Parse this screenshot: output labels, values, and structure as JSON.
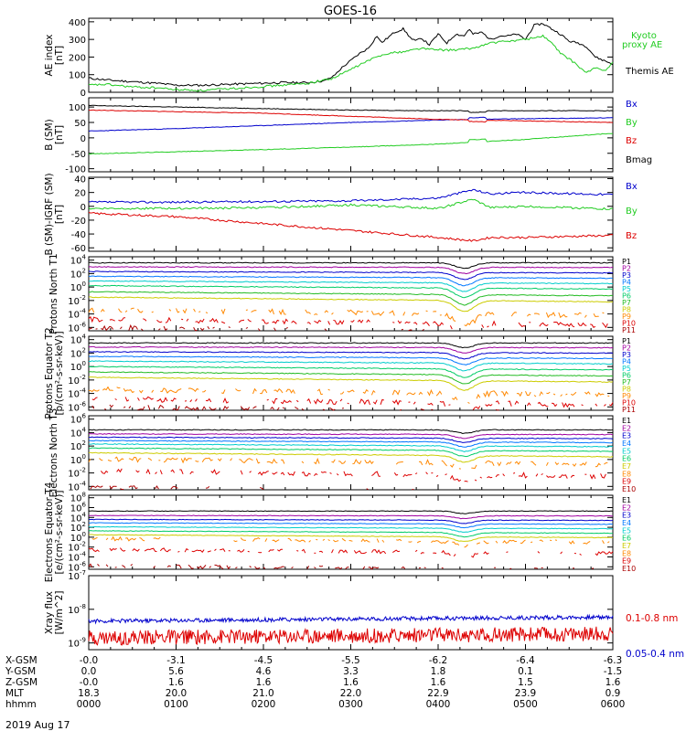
{
  "title": "GOES-16",
  "date_label": "2019 Aug 17",
  "colors": {
    "black": "#000000",
    "blue": "#0000cc",
    "green": "#22cc22",
    "red": "#dd0000",
    "p_colors": [
      "#000000",
      "#a000a0",
      "#0000cc",
      "#0077ff",
      "#00cccc",
      "#00cc66",
      "#22bb22",
      "#cccc00",
      "#ff8800",
      "#dd0000",
      "#aa0000"
    ],
    "e_colors": [
      "#000000",
      "#a000a0",
      "#0000cc",
      "#0077ff",
      "#00cccc",
      "#00cc66",
      "#cccc00",
      "#ff8800",
      "#dd0000",
      "#aa0000"
    ]
  },
  "ephemeris": {
    "row_labels": [
      "X-GSM",
      "Y-GSM",
      "Z-GSM",
      "MLT",
      "hhmm"
    ],
    "columns": [
      [
        "-0.0",
        "0.0",
        "-0.0",
        "18.3",
        "0000"
      ],
      [
        "-3.1",
        "5.6",
        "1.6",
        "20.0",
        "0100"
      ],
      [
        "-4.5",
        "4.6",
        "1.6",
        "21.0",
        "0200"
      ],
      [
        "-5.5",
        "3.3",
        "1.6",
        "22.0",
        "0300"
      ],
      [
        "-6.2",
        "1.8",
        "1.6",
        "22.9",
        "0400"
      ],
      [
        "-6.4",
        "0.1",
        "1.5",
        "23.9",
        "0500"
      ],
      [
        "-6.3",
        "-1.5",
        "1.6",
        "0.9",
        "0600"
      ]
    ]
  },
  "chart_data": [
    {
      "type": "line",
      "id": "ae",
      "ylabel": "AE index [nT]",
      "ylim": [
        0,
        420
      ],
      "yticks": [
        "0",
        "100",
        "200",
        "300",
        "400"
      ],
      "xlim": [
        0,
        6
      ],
      "series": [
        {
          "name": "Themis AE",
          "color": "#000000",
          "x": [
            0,
            0.2,
            0.5,
            0.8,
            1.0,
            1.3,
            1.6,
            1.9,
            2.2,
            2.5,
            2.7,
            2.8,
            2.9,
            3.0,
            3.1,
            3.2,
            3.3,
            3.35,
            3.4,
            3.5,
            3.6,
            3.7,
            3.75,
            3.8,
            3.9,
            4.0,
            4.1,
            4.2,
            4.3,
            4.35,
            4.4,
            4.5,
            4.6,
            4.7,
            4.8,
            4.9,
            5.0,
            5.1,
            5.2,
            5.3,
            5.4,
            5.5,
            5.6,
            5.7,
            5.8,
            5.9,
            6.0
          ],
          "y": [
            80,
            70,
            60,
            50,
            40,
            40,
            45,
            50,
            55,
            55,
            65,
            90,
            140,
            180,
            220,
            250,
            320,
            280,
            300,
            340,
            360,
            300,
            290,
            310,
            270,
            330,
            280,
            330,
            320,
            360,
            330,
            340,
            300,
            320,
            320,
            330,
            300,
            380,
            390,
            360,
            330,
            290,
            280,
            260,
            200,
            180,
            160
          ]
        },
        {
          "name": "Kyoto proxy AE",
          "color": "#22cc22",
          "x": [
            0,
            0.2,
            0.5,
            0.8,
            1.0,
            1.3,
            1.6,
            1.9,
            2.2,
            2.5,
            2.8,
            3.0,
            3.2,
            3.4,
            3.6,
            3.8,
            4.0,
            4.2,
            4.4,
            4.6,
            4.8,
            5.0,
            5.2,
            5.3,
            5.4,
            5.5,
            5.6,
            5.7,
            5.8,
            5.9,
            6.0
          ],
          "y": [
            40,
            45,
            30,
            25,
            15,
            10,
            20,
            30,
            40,
            50,
            80,
            130,
            180,
            220,
            230,
            250,
            240,
            240,
            250,
            280,
            290,
            300,
            320,
            280,
            220,
            190,
            150,
            110,
            140,
            120,
            170
          ]
        }
      ]
    },
    {
      "type": "line",
      "id": "bsm",
      "ylabel": "B (SM) [nT]",
      "ylim": [
        -110,
        130
      ],
      "yticks": [
        "-100",
        "-50",
        "0",
        "50",
        "100"
      ],
      "xlim": [
        0,
        6
      ],
      "series": [
        {
          "name": "Bx",
          "color": "#0000cc",
          "x": [
            0,
            1,
            2,
            3,
            4,
            5,
            6
          ],
          "y": [
            22,
            30,
            40,
            50,
            58,
            62,
            65
          ]
        },
        {
          "name": "By",
          "color": "#22cc22",
          "x": [
            0,
            1,
            2,
            3,
            4,
            5,
            6
          ],
          "y": [
            -52,
            -45,
            -38,
            -30,
            -20,
            -5,
            15
          ]
        },
        {
          "name": "Bz",
          "color": "#dd0000",
          "x": [
            0,
            1,
            2,
            3,
            4,
            5,
            6
          ],
          "y": [
            90,
            85,
            80,
            70,
            60,
            55,
            50
          ]
        },
        {
          "name": "Bmag",
          "color": "#000000",
          "x": [
            0,
            1,
            2,
            3,
            4,
            5,
            6
          ],
          "y": [
            105,
            100,
            95,
            90,
            88,
            88,
            88
          ]
        }
      ]
    },
    {
      "type": "line",
      "id": "bigrf",
      "ylabel": "B (SM)-IGRF (SM) [nT]",
      "ylim": [
        -65,
        42
      ],
      "yticks": [
        "-60",
        "-40",
        "-20",
        "0",
        "20",
        "40"
      ],
      "xlim": [
        0,
        6
      ],
      "series": [
        {
          "name": "Bx",
          "color": "#0000cc",
          "x": [
            0,
            1,
            2,
            3,
            4,
            4.4,
            4.6,
            5,
            6
          ],
          "y": [
            6,
            6,
            7,
            8,
            12,
            24,
            18,
            20,
            17
          ]
        },
        {
          "name": "By",
          "color": "#22cc22",
          "x": [
            0,
            1,
            2,
            3,
            4,
            4.4,
            4.6,
            5,
            6
          ],
          "y": [
            -3,
            -3,
            -2,
            2,
            -3,
            10,
            -2,
            0,
            -4
          ]
        },
        {
          "name": "Bz",
          "color": "#dd0000",
          "x": [
            0,
            1,
            2,
            3,
            4,
            4.4,
            4.6,
            5,
            6
          ],
          "y": [
            -10,
            -15,
            -25,
            -35,
            -45,
            -50,
            -45,
            -45,
            -42
          ]
        }
      ]
    },
    {
      "type": "line",
      "id": "pn",
      "scale": "log",
      "ylabel": "Protons North T1",
      "ylim": [
        -6.5,
        4.5
      ],
      "yticks": [
        "10^4",
        "10^2",
        "10^0",
        "10^-2",
        "10^-4",
        "10^-6"
      ],
      "xlim": [
        0,
        6
      ],
      "series_names": [
        "P1",
        "P2",
        "P3",
        "P4",
        "P5",
        "P6",
        "P7",
        "P8",
        "P9",
        "P10",
        "P11"
      ],
      "base_levels": [
        3.6,
        3.0,
        2.3,
        1.6,
        0.9,
        0.2,
        -0.7,
        -1.5,
        -3.4,
        -4.8,
        -6.0
      ],
      "dip": -0.8
    },
    {
      "type": "line",
      "id": "pe",
      "scale": "log",
      "ylabel": "Protons Equator T2 [p/(cm²-s-sr-keV)]",
      "ylim": [
        -6.5,
        4.5
      ],
      "yticks": [
        "10^4",
        "10^2",
        "10^0",
        "10^-2",
        "10^-4",
        "10^-6"
      ],
      "xlim": [
        0,
        6
      ],
      "series_names": [
        "P1",
        "P2",
        "P3",
        "P4",
        "P5",
        "P6",
        "P7",
        "P8",
        "P9",
        "P10",
        "P11"
      ],
      "base_levels": [
        3.5,
        2.9,
        2.2,
        1.5,
        0.8,
        0.0,
        -0.8,
        -1.6,
        -3.4,
        -4.8,
        -6.0
      ],
      "dip": -0.7
    },
    {
      "type": "line",
      "id": "en",
      "scale": "log",
      "ylabel": "Electrons North T3",
      "ylim": [
        -4.5,
        6.5
      ],
      "yticks": [
        "10^6",
        "10^4",
        "10^2",
        "10^0",
        "10^-2",
        "10^-4"
      ],
      "xlim": [
        0,
        6
      ],
      "series_names": [
        "E1",
        "E2",
        "E3",
        "E4",
        "E5",
        "E6",
        "E7",
        "E8",
        "E9",
        "E10"
      ],
      "base_levels": [
        4.4,
        3.8,
        3.3,
        2.8,
        2.3,
        1.7,
        1.0,
        0.0,
        -1.7,
        -4.2
      ],
      "dip": -0.5
    },
    {
      "type": "line",
      "id": "ee",
      "scale": "log",
      "ylabel": "Electrons Equator T4 [e/(cm²-s-sr-keV)]",
      "ylim": [
        -6.5,
        8.5
      ],
      "yticks": [
        "10^8",
        "10^6",
        "10^4",
        "10^2",
        "10^0",
        "10^-2",
        "10^-4",
        "10^-6"
      ],
      "xlim": [
        0,
        6
      ],
      "series_names": [
        "E1",
        "E2",
        "E3",
        "E4",
        "E5",
        "E6",
        "E7",
        "E8",
        "E9",
        "E10"
      ],
      "base_levels": [
        5.3,
        4.4,
        3.6,
        2.9,
        2.1,
        1.3,
        0.5,
        -0.3,
        -2.5,
        -5.8
      ],
      "dip": -0.5
    },
    {
      "type": "line",
      "id": "xray",
      "scale": "log",
      "ylabel": "Xray flux [W/m^2]",
      "ylim": [
        -9.2,
        -7.0
      ],
      "yticks": [
        "10^-7",
        "10^-8",
        "10^-9"
      ],
      "xlim": [
        0,
        6
      ],
      "series": [
        {
          "name": "0.1-0.8 nm",
          "color": "#dd0000",
          "level": -8.85,
          "noise": 0.22
        },
        {
          "name": "0.05-0.4 nm",
          "color": "#0000cc",
          "level": -8.35,
          "noise": 0.06
        }
      ]
    }
  ]
}
